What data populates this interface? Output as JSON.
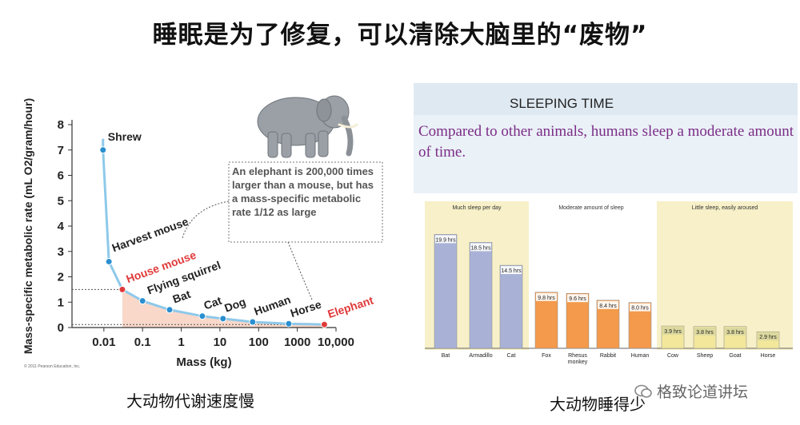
{
  "title": "睡眠是为了修复，可以清除大脑里的“废物”",
  "captions": {
    "left": "大动物代谢速度慢",
    "right": "大动物睡得少"
  },
  "watermark": "格致论道讲坛",
  "colors": {
    "curve": "#8ec9ea",
    "point": "#2a8fd0",
    "highlight": "#e03a3a",
    "fill": "#f6c8b4",
    "bar_blue": "#a9b2d6",
    "bar_orange": "#f39a4c",
    "panel_bg": "#f7f0c8",
    "slide_bg": "#eaf1f7",
    "subtitle": "#7b2c86"
  },
  "chart_data": [
    {
      "type": "scatter",
      "title": "",
      "xlabel": "Mass (kg)",
      "ylabel": "Mass-specific metabolic rate (mL O2/gram/hour)",
      "xscale": "log",
      "xlim": [
        0.0015,
        10000
      ],
      "ylim": [
        0,
        8
      ],
      "x_ticks": [
        "0.01",
        "0.1",
        "1",
        "10",
        "100",
        "1000",
        "10,000"
      ],
      "y_ticks": [
        "0",
        "1",
        "2",
        "3",
        "4",
        "5",
        "6",
        "7",
        "8"
      ],
      "points": [
        {
          "label": "Shrew",
          "x": 0.0095,
          "y": 7.0,
          "highlight": false
        },
        {
          "label": "Harvest mouse",
          "x": 0.0135,
          "y": 2.6,
          "highlight": false
        },
        {
          "label": "House mouse",
          "x": 0.03,
          "y": 1.5,
          "highlight": true
        },
        {
          "label": "Flying squirrel",
          "x": 0.1,
          "y": 1.05,
          "highlight": false
        },
        {
          "label": "Bat",
          "x": 0.5,
          "y": 0.7,
          "highlight": false
        },
        {
          "label": "Cat",
          "x": 3.5,
          "y": 0.45,
          "highlight": false
        },
        {
          "label": "Dog",
          "x": 12,
          "y": 0.35,
          "highlight": false
        },
        {
          "label": "Human",
          "x": 70,
          "y": 0.22,
          "highlight": false
        },
        {
          "label": "Horse",
          "x": 600,
          "y": 0.15,
          "highlight": false
        },
        {
          "label": "Elephant",
          "x": 5000,
          "y": 0.12,
          "highlight": true
        }
      ],
      "annotation": "An elephant is 200,000 times larger than a mouse, but has a mass-specific metabolic rate 1/12 as large",
      "credit": "© 2011 Pearson Education, Inc."
    },
    {
      "type": "bar",
      "title": "SLEEPING TIME",
      "subtitle": "Compared to other animals, humans sleep a moderate amount of time.",
      "groups": [
        "Much sleep per day",
        "Moderate amount of sleep",
        "Little sleep, easily aroused"
      ],
      "categories": [
        "Bat",
        "Armadillo",
        "Cat",
        "Fox",
        "Rhesus monkey",
        "Rabbit",
        "Human",
        "Cow",
        "Sheep",
        "Goat",
        "Horse"
      ],
      "values": [
        19.9,
        18.5,
        14.5,
        9.8,
        9.6,
        8.4,
        8.0,
        3.9,
        3.8,
        3.8,
        2.9
      ],
      "value_labels": [
        "19.9 hrs",
        "18.5 hrs",
        "14.5 hrs",
        "9.8 hrs",
        "9.6 hrs",
        "8.4 hrs",
        "8.0 hrs",
        "3.9 hrs",
        "3.8 hrs",
        "3.8 hrs",
        "2.9 hrs"
      ],
      "group_index": [
        0,
        0,
        0,
        1,
        1,
        1,
        1,
        2,
        2,
        2,
        2
      ],
      "ylim": [
        0,
        24
      ]
    }
  ]
}
